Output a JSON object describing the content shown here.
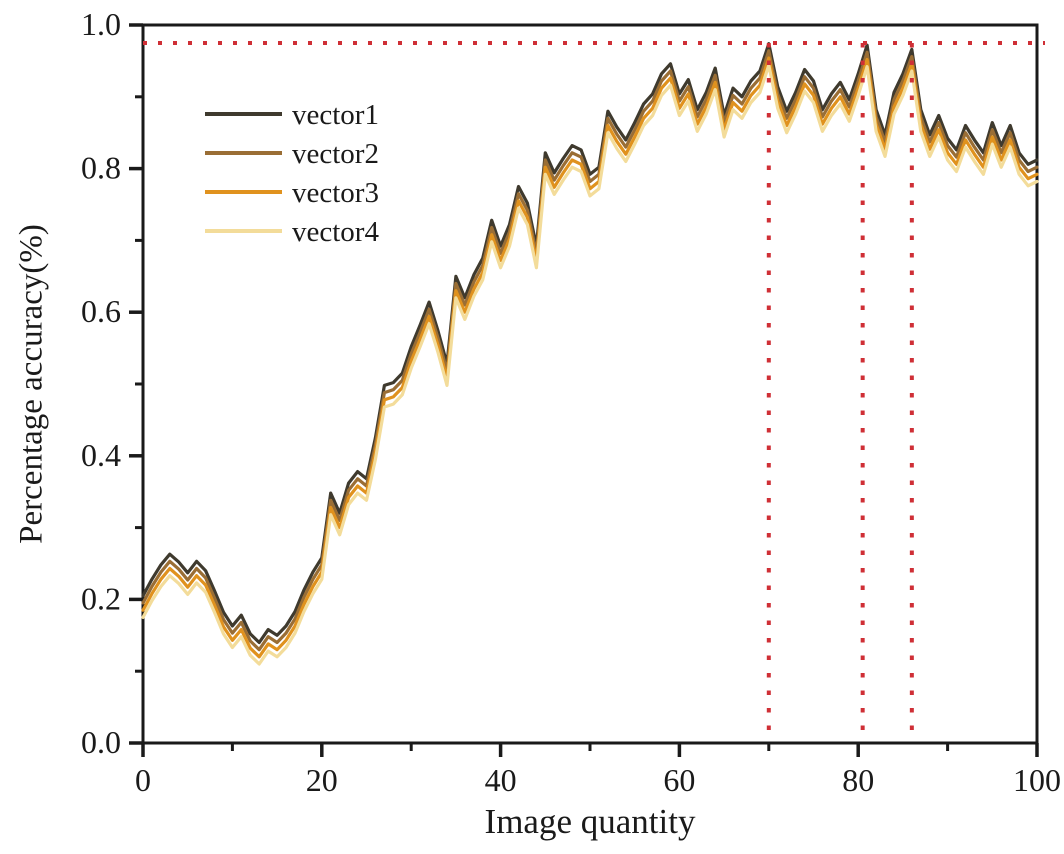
{
  "figure": {
    "x_axis_label": "Image quantity",
    "y_axis_label": "Percentage accuracy(%)"
  },
  "chart_data": {
    "type": "line",
    "title": "",
    "xlabel": "Image quantity",
    "ylabel": "Percentage accuracy(%)",
    "xlim": [
      0,
      100
    ],
    "ylim": [
      0.0,
      1.0
    ],
    "x_ticks": [
      0,
      20,
      40,
      60,
      80,
      100
    ],
    "x_minor_ticks": [
      10,
      30,
      50,
      70,
      90
    ],
    "y_ticks": [
      0.0,
      0.2,
      0.4,
      0.6,
      0.8,
      1.0
    ],
    "y_tick_labels": [
      "0.0",
      "0.2",
      "0.4",
      "0.6",
      "0.8",
      "1.0"
    ],
    "y_minor_ticks": [
      0.1,
      0.3,
      0.5,
      0.7,
      0.9
    ],
    "grid": false,
    "legend_position": "upper-left-inside",
    "axis_color": "#1a1a1a",
    "x": [
      0,
      1,
      2,
      3,
      4,
      5,
      6,
      7,
      8,
      9,
      10,
      11,
      12,
      13,
      14,
      15,
      16,
      17,
      18,
      19,
      20,
      21,
      22,
      23,
      24,
      25,
      26,
      27,
      28,
      29,
      30,
      31,
      32,
      33,
      34,
      35,
      36,
      37,
      38,
      39,
      40,
      41,
      42,
      43,
      44,
      45,
      46,
      47,
      48,
      49,
      50,
      51,
      52,
      53,
      54,
      55,
      56,
      57,
      58,
      59,
      60,
      61,
      62,
      63,
      64,
      65,
      66,
      67,
      68,
      69,
      70,
      71,
      72,
      73,
      74,
      75,
      76,
      77,
      78,
      79,
      80,
      81,
      82,
      83,
      84,
      85,
      86,
      87,
      88,
      89,
      90,
      91,
      92,
      93,
      94,
      95,
      96,
      97,
      98,
      99,
      100
    ],
    "series": [
      {
        "name": "vector1",
        "color": "#3f3a2e",
        "values": [
          0.205,
          0.228,
          0.248,
          0.263,
          0.252,
          0.237,
          0.253,
          0.24,
          0.212,
          0.182,
          0.163,
          0.178,
          0.152,
          0.14,
          0.158,
          0.15,
          0.163,
          0.183,
          0.213,
          0.238,
          0.258,
          0.348,
          0.32,
          0.362,
          0.378,
          0.368,
          0.425,
          0.498,
          0.502,
          0.515,
          0.552,
          0.582,
          0.614,
          0.574,
          0.528,
          0.65,
          0.62,
          0.652,
          0.675,
          0.728,
          0.692,
          0.722,
          0.775,
          0.752,
          0.692,
          0.822,
          0.794,
          0.814,
          0.832,
          0.826,
          0.792,
          0.802,
          0.88,
          0.858,
          0.84,
          0.864,
          0.89,
          0.904,
          0.932,
          0.946,
          0.904,
          0.924,
          0.882,
          0.906,
          0.94,
          0.874,
          0.912,
          0.9,
          0.922,
          0.936,
          0.974,
          0.914,
          0.88,
          0.906,
          0.938,
          0.922,
          0.882,
          0.904,
          0.92,
          0.896,
          0.932,
          0.972,
          0.882,
          0.847,
          0.906,
          0.932,
          0.966,
          0.882,
          0.847,
          0.874,
          0.842,
          0.826,
          0.86,
          0.84,
          0.822,
          0.864,
          0.832,
          0.86,
          0.822,
          0.806,
          0.812
        ]
      },
      {
        "name": "vector2",
        "color": "#9a6e35",
        "values": [
          0.195,
          0.218,
          0.238,
          0.253,
          0.242,
          0.227,
          0.243,
          0.23,
          0.202,
          0.172,
          0.153,
          0.168,
          0.142,
          0.13,
          0.148,
          0.14,
          0.153,
          0.173,
          0.203,
          0.228,
          0.248,
          0.338,
          0.31,
          0.352,
          0.368,
          0.358,
          0.415,
          0.488,
          0.492,
          0.505,
          0.542,
          0.572,
          0.604,
          0.564,
          0.518,
          0.64,
          0.61,
          0.642,
          0.665,
          0.718,
          0.682,
          0.712,
          0.765,
          0.742,
          0.682,
          0.812,
          0.784,
          0.804,
          0.822,
          0.816,
          0.782,
          0.792,
          0.87,
          0.848,
          0.83,
          0.854,
          0.88,
          0.894,
          0.922,
          0.936,
          0.894,
          0.914,
          0.872,
          0.896,
          0.93,
          0.864,
          0.902,
          0.89,
          0.912,
          0.926,
          0.964,
          0.904,
          0.87,
          0.896,
          0.928,
          0.912,
          0.872,
          0.894,
          0.91,
          0.886,
          0.922,
          0.962,
          0.872,
          0.837,
          0.896,
          0.922,
          0.956,
          0.872,
          0.837,
          0.864,
          0.832,
          0.816,
          0.85,
          0.83,
          0.812,
          0.854,
          0.822,
          0.85,
          0.812,
          0.796,
          0.802
        ]
      },
      {
        "name": "vector3",
        "color": "#e0921e",
        "values": [
          0.185,
          0.208,
          0.228,
          0.243,
          0.232,
          0.217,
          0.233,
          0.22,
          0.192,
          0.162,
          0.143,
          0.158,
          0.132,
          0.12,
          0.138,
          0.13,
          0.143,
          0.163,
          0.193,
          0.218,
          0.238,
          0.328,
          0.3,
          0.342,
          0.358,
          0.348,
          0.405,
          0.478,
          0.482,
          0.495,
          0.532,
          0.562,
          0.594,
          0.554,
          0.508,
          0.63,
          0.6,
          0.632,
          0.655,
          0.708,
          0.672,
          0.702,
          0.755,
          0.732,
          0.672,
          0.802,
          0.774,
          0.794,
          0.812,
          0.806,
          0.772,
          0.782,
          0.86,
          0.838,
          0.82,
          0.844,
          0.87,
          0.884,
          0.912,
          0.926,
          0.884,
          0.904,
          0.862,
          0.886,
          0.92,
          0.854,
          0.892,
          0.88,
          0.902,
          0.916,
          0.954,
          0.894,
          0.86,
          0.886,
          0.918,
          0.902,
          0.862,
          0.884,
          0.9,
          0.876,
          0.912,
          0.952,
          0.862,
          0.827,
          0.886,
          0.912,
          0.946,
          0.862,
          0.827,
          0.854,
          0.822,
          0.806,
          0.84,
          0.82,
          0.802,
          0.844,
          0.812,
          0.84,
          0.802,
          0.786,
          0.792
        ]
      },
      {
        "name": "vector4",
        "color": "#f3dc9a",
        "values": [
          0.175,
          0.198,
          0.218,
          0.233,
          0.222,
          0.207,
          0.223,
          0.21,
          0.182,
          0.152,
          0.133,
          0.148,
          0.122,
          0.11,
          0.128,
          0.12,
          0.133,
          0.153,
          0.183,
          0.208,
          0.228,
          0.318,
          0.29,
          0.332,
          0.348,
          0.338,
          0.395,
          0.468,
          0.472,
          0.485,
          0.522,
          0.552,
          0.584,
          0.544,
          0.498,
          0.62,
          0.59,
          0.622,
          0.645,
          0.698,
          0.662,
          0.692,
          0.745,
          0.722,
          0.662,
          0.792,
          0.764,
          0.784,
          0.802,
          0.796,
          0.762,
          0.772,
          0.85,
          0.828,
          0.81,
          0.834,
          0.86,
          0.874,
          0.902,
          0.916,
          0.874,
          0.894,
          0.852,
          0.876,
          0.91,
          0.844,
          0.882,
          0.87,
          0.892,
          0.906,
          0.944,
          0.884,
          0.85,
          0.876,
          0.908,
          0.892,
          0.852,
          0.874,
          0.89,
          0.866,
          0.902,
          0.942,
          0.852,
          0.817,
          0.876,
          0.902,
          0.936,
          0.852,
          0.817,
          0.844,
          0.812,
          0.796,
          0.83,
          0.81,
          0.792,
          0.834,
          0.802,
          0.83,
          0.792,
          0.776,
          0.782
        ]
      }
    ],
    "reference_lines": {
      "color": "#cf2f36",
      "style": "dotted",
      "horizontal_y": 0.975,
      "vertical_x": [
        70,
        80.5,
        86
      ]
    },
    "legend_entries": [
      "vector1",
      "vector2",
      "vector3",
      "vector4"
    ]
  }
}
